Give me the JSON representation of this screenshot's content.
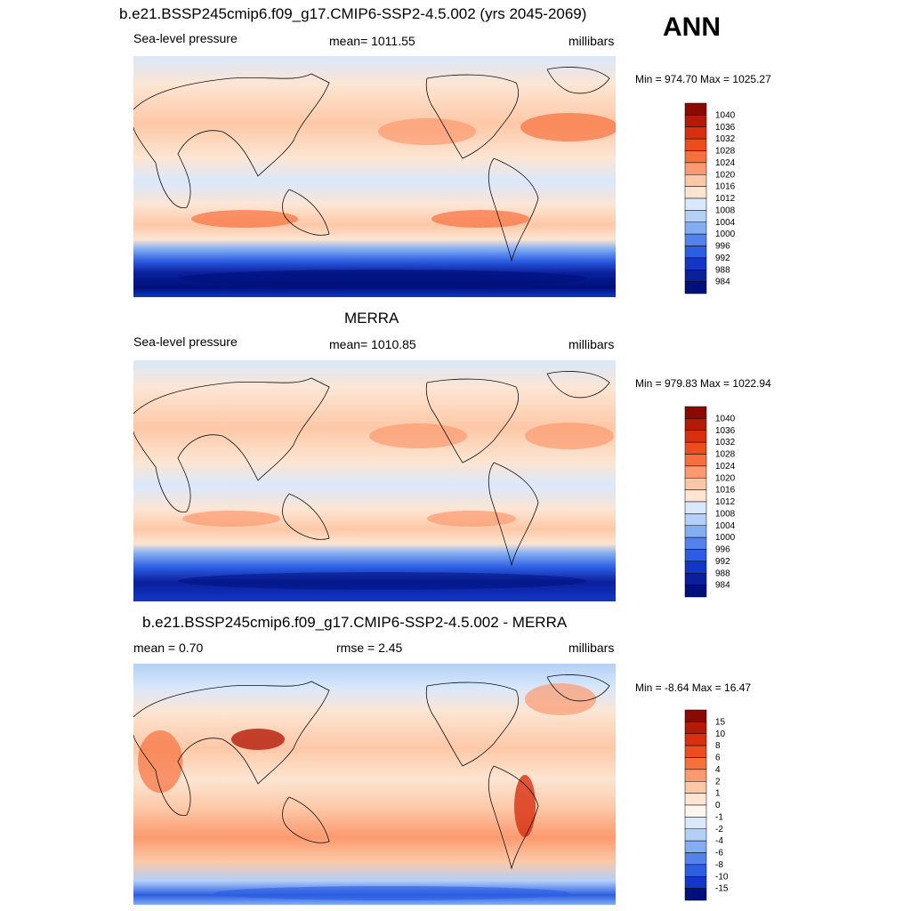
{
  "figure": {
    "season": "ANN"
  },
  "chart_data": [
    {
      "type": "heatmap",
      "title": "b.e21.BSSP245cmip6.f09_g17.CMIP6-SSP2-4.5.002 (yrs 2045-2069)",
      "left_label": "Sea-level pressure",
      "center_label": "mean= 1011.55",
      "right_label": "millibars",
      "minmax_label": "Min = 974.70 Max = 1025.27",
      "mean": 1011.55,
      "min": 974.7,
      "max": 1025.27,
      "units": "millibars",
      "colorbar_levels": [
        "1040",
        "1036",
        "1032",
        "1028",
        "1024",
        "1020",
        "1016",
        "1012",
        "1008",
        "1004",
        "1000",
        "996",
        "992",
        "988",
        "984"
      ],
      "colorbar_colors": [
        "#8b0a00",
        "#b41a08",
        "#d7300f",
        "#ec4d1e",
        "#f6703d",
        "#fb9a6f",
        "#fdc8a7",
        "#fde5d2",
        "#d9e8fb",
        "#b3d0f7",
        "#84aef2",
        "#5283ec",
        "#2c5ee3",
        "#1237c6",
        "#0a1f9c",
        "#00107a"
      ],
      "map_features": {
        "high_pressure_belts": true,
        "southern_low_belt": true
      }
    },
    {
      "type": "heatmap",
      "title": "MERRA",
      "left_label": "Sea-level pressure",
      "center_label": "mean= 1010.85",
      "right_label": "millibars",
      "minmax_label": "Min = 979.83 Max = 1022.94",
      "mean": 1010.85,
      "min": 979.83,
      "max": 1022.94,
      "units": "millibars",
      "colorbar_levels": [
        "1040",
        "1036",
        "1032",
        "1028",
        "1024",
        "1020",
        "1016",
        "1012",
        "1008",
        "1004",
        "1000",
        "996",
        "992",
        "988",
        "984"
      ],
      "colorbar_colors": [
        "#8b0a00",
        "#b41a08",
        "#d7300f",
        "#ec4d1e",
        "#f6703d",
        "#fb9a6f",
        "#fdc8a7",
        "#fde5d2",
        "#d9e8fb",
        "#b3d0f7",
        "#84aef2",
        "#5283ec",
        "#2c5ee3",
        "#1237c6",
        "#0a1f9c",
        "#00107a"
      ],
      "map_features": {
        "high_pressure_belts": true,
        "southern_low_belt": true
      }
    },
    {
      "type": "heatmap",
      "title": "b.e21.BSSP245cmip6.f09_g17.CMIP6-SSP2-4.5.002 - MERRA",
      "left_label": "mean =   0.70",
      "center_label": "rmse =   2.45",
      "right_label": "millibars",
      "minmax_label": "Min =  -8.64 Max =  16.47",
      "mean": 0.7,
      "rmse": 2.45,
      "min": -8.64,
      "max": 16.47,
      "units": "millibars",
      "colorbar_levels": [
        "15",
        "10",
        "8",
        "6",
        "4",
        "2",
        "1",
        "0",
        "-1",
        "-2",
        "-4",
        "-6",
        "-8",
        "-10",
        "-15"
      ],
      "colorbar_colors": [
        "#8b0a00",
        "#b41a08",
        "#d7300f",
        "#ec4d1e",
        "#f6703d",
        "#fb9a6f",
        "#fdc8a7",
        "#fde5d2",
        "#fdf5ee",
        "#d9e8fb",
        "#b3d0f7",
        "#84aef2",
        "#5283ec",
        "#2c5ee3",
        "#1237c6",
        "#00107a"
      ],
      "map_features": {
        "difference_field": true
      }
    }
  ]
}
